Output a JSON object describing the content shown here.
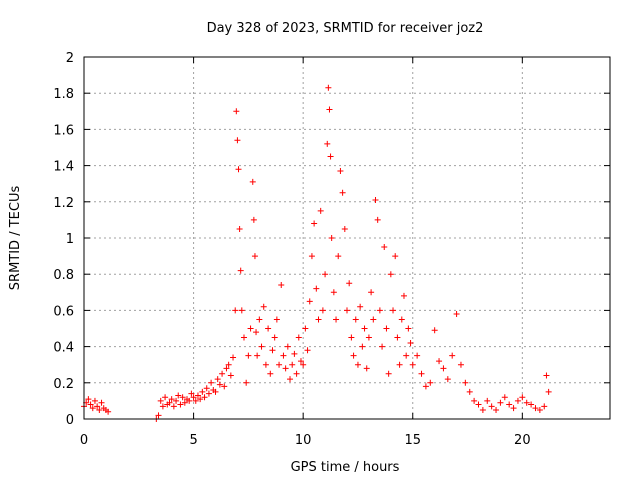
{
  "chart_data": {
    "type": "scatter",
    "title": "Day 328 of 2023, SRMTID for receiver joz2",
    "xlabel": "GPS time / hours",
    "ylabel": "SRMTID / TECUs",
    "xlim": [
      0,
      24
    ],
    "ylim": [
      0,
      2
    ],
    "x_ticks": [
      0,
      5,
      10,
      15,
      20
    ],
    "x_tick_labels": [
      "0",
      "5",
      "10",
      "15",
      "20"
    ],
    "y_ticks": [
      0,
      0.2,
      0.4,
      0.6,
      0.8,
      1,
      1.2,
      1.4,
      1.6,
      1.8,
      2
    ],
    "y_tick_labels": [
      "0",
      "0.2",
      "0.4",
      "0.6",
      "0.8",
      "1",
      "1.2",
      "1.4",
      "1.6",
      "1.8",
      "2"
    ],
    "grid": true,
    "marker": "+",
    "series_color": "#ff0000",
    "series": [
      {
        "name": "SRMTID",
        "x": [
          0.0,
          0.1,
          0.2,
          0.3,
          0.4,
          0.5,
          0.6,
          0.7,
          0.8,
          0.9,
          1.0,
          1.1,
          3.3,
          3.4,
          3.5,
          3.6,
          3.7,
          3.8,
          3.9,
          4.0,
          4.1,
          4.2,
          4.3,
          4.4,
          4.5,
          4.6,
          4.7,
          4.8,
          4.9,
          5.0,
          5.1,
          5.2,
          5.3,
          5.4,
          5.5,
          5.6,
          5.7,
          5.8,
          5.9,
          6.0,
          6.1,
          6.2,
          6.3,
          6.4,
          6.5,
          6.6,
          6.7,
          6.8,
          6.9,
          6.95,
          7.0,
          7.05,
          7.1,
          7.15,
          7.2,
          7.3,
          7.4,
          7.5,
          7.6,
          7.7,
          7.75,
          7.8,
          7.85,
          7.9,
          8.0,
          8.1,
          8.2,
          8.3,
          8.4,
          8.5,
          8.6,
          8.7,
          8.8,
          8.9,
          9.0,
          9.1,
          9.2,
          9.3,
          9.4,
          9.5,
          9.6,
          9.7,
          9.8,
          9.9,
          10.0,
          10.1,
          10.2,
          10.3,
          10.4,
          10.5,
          10.6,
          10.7,
          10.8,
          10.9,
          11.0,
          11.1,
          11.15,
          11.2,
          11.25,
          11.3,
          11.4,
          11.5,
          11.6,
          11.7,
          11.8,
          11.9,
          12.0,
          12.1,
          12.2,
          12.3,
          12.4,
          12.5,
          12.6,
          12.7,
          12.8,
          12.9,
          13.0,
          13.1,
          13.2,
          13.3,
          13.4,
          13.5,
          13.6,
          13.7,
          13.8,
          13.9,
          14.0,
          14.1,
          14.2,
          14.3,
          14.4,
          14.5,
          14.6,
          14.7,
          14.8,
          14.9,
          15.0,
          15.2,
          15.4,
          15.6,
          15.8,
          16.0,
          16.2,
          16.4,
          16.6,
          16.8,
          17.0,
          17.2,
          17.4,
          17.6,
          17.8,
          18.0,
          18.2,
          18.4,
          18.6,
          18.8,
          19.0,
          19.2,
          19.4,
          19.6,
          19.8,
          20.0,
          20.2,
          20.4,
          20.6,
          20.8,
          21.0,
          21.1,
          21.2
        ],
        "y": [
          0.07,
          0.09,
          0.11,
          0.08,
          0.06,
          0.1,
          0.07,
          0.05,
          0.09,
          0.06,
          0.05,
          0.04,
          0.0,
          0.02,
          0.1,
          0.07,
          0.12,
          0.08,
          0.09,
          0.11,
          0.07,
          0.1,
          0.13,
          0.08,
          0.12,
          0.09,
          0.11,
          0.1,
          0.14,
          0.12,
          0.1,
          0.13,
          0.11,
          0.15,
          0.12,
          0.17,
          0.14,
          0.2,
          0.16,
          0.15,
          0.22,
          0.19,
          0.25,
          0.18,
          0.28,
          0.3,
          0.24,
          0.34,
          0.6,
          1.7,
          1.54,
          1.38,
          1.05,
          0.82,
          0.6,
          0.45,
          0.2,
          0.35,
          0.5,
          1.31,
          1.1,
          0.9,
          0.48,
          0.35,
          0.55,
          0.4,
          0.62,
          0.3,
          0.5,
          0.25,
          0.38,
          0.45,
          0.55,
          0.3,
          0.74,
          0.35,
          0.28,
          0.4,
          0.22,
          0.3,
          0.36,
          0.25,
          0.45,
          0.32,
          0.3,
          0.5,
          0.38,
          0.65,
          0.9,
          1.08,
          0.72,
          0.55,
          1.15,
          0.6,
          0.8,
          1.52,
          1.83,
          1.71,
          1.45,
          1.0,
          0.7,
          0.55,
          0.9,
          1.37,
          1.25,
          1.05,
          0.6,
          0.75,
          0.45,
          0.35,
          0.55,
          0.3,
          0.62,
          0.4,
          0.5,
          0.28,
          0.45,
          0.7,
          0.55,
          1.21,
          1.1,
          0.6,
          0.4,
          0.95,
          0.5,
          0.25,
          0.8,
          0.6,
          0.9,
          0.45,
          0.3,
          0.55,
          0.68,
          0.35,
          0.5,
          0.42,
          0.3,
          0.35,
          0.25,
          0.18,
          0.2,
          0.49,
          0.32,
          0.28,
          0.22,
          0.35,
          0.58,
          0.3,
          0.2,
          0.15,
          0.1,
          0.08,
          0.05,
          0.1,
          0.07,
          0.05,
          0.09,
          0.12,
          0.08,
          0.06,
          0.1,
          0.12,
          0.09,
          0.08,
          0.06,
          0.05,
          0.07,
          0.24,
          0.15
        ]
      }
    ]
  }
}
